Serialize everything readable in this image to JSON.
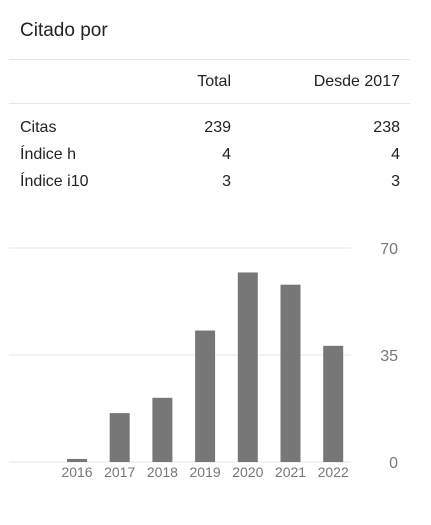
{
  "panel": {
    "title": "Citado por",
    "columns": {
      "total": "Total",
      "since": "Desde 2017"
    },
    "rows": [
      {
        "label": "Citas",
        "total": "239",
        "since": "238"
      },
      {
        "label": "Índice h",
        "total": "4",
        "since": "4"
      },
      {
        "label": "Índice i10",
        "total": "3",
        "since": "3"
      }
    ]
  },
  "chart_data": {
    "type": "bar",
    "categories": [
      "2016",
      "2017",
      "2018",
      "2019",
      "2020",
      "2021",
      "2022"
    ],
    "values": [
      1,
      16,
      21,
      43,
      62,
      58,
      38
    ],
    "ylim": [
      0,
      70
    ],
    "yticks": [
      "0",
      "35",
      "70"
    ],
    "bar_color": "#777777",
    "grid": true,
    "title": "",
    "xlabel": "",
    "ylabel": ""
  }
}
